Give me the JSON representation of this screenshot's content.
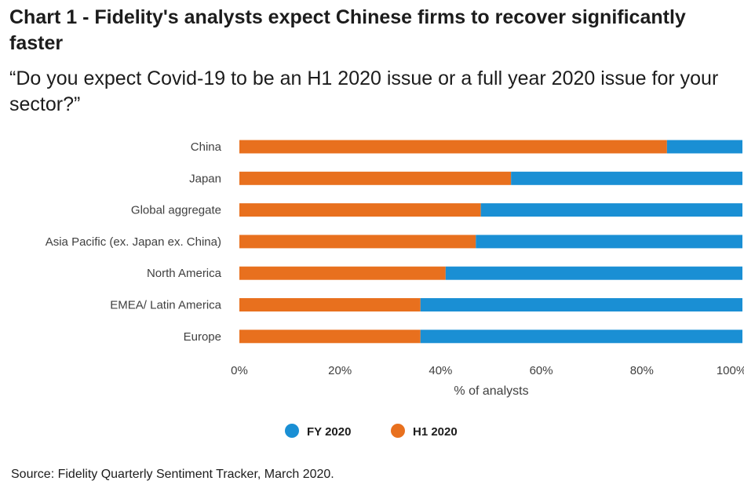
{
  "header": {
    "title": "Chart 1 - Fidelity's analysts expect Chinese firms to recover significantly faster",
    "subtitle": "“Do you expect Covid-19 to be an H1 2020 issue or a full year 2020 issue for your sector?”"
  },
  "footer": {
    "source": "Source: Fidelity Quarterly Sentiment Tracker, March 2020."
  },
  "colors": {
    "fy": "#1a8fd4",
    "h1": "#e8701e"
  },
  "chart_data": {
    "type": "bar",
    "orientation": "horizontal",
    "stacked": true,
    "categories": [
      "China",
      "Japan",
      "Global aggregate",
      "Asia Pacific (ex. Japan ex. China)",
      "North America",
      "EMEA/ Latin America",
      "Europe"
    ],
    "series": [
      {
        "name": "H1 2020",
        "values": [
          85,
          54,
          48,
          47,
          41,
          36,
          36
        ]
      },
      {
        "name": "FY 2020",
        "values": [
          15,
          46,
          52,
          53,
          59,
          64,
          64
        ]
      }
    ],
    "xlabel": "% of analysts",
    "xlim": [
      0,
      100
    ],
    "xticks": [
      "0%",
      "20%",
      "40%",
      "60%",
      "80%",
      "100%"
    ],
    "legend": {
      "position": "bottom",
      "entries": [
        "FY 2020",
        "H1 2020"
      ]
    },
    "grid": false
  }
}
